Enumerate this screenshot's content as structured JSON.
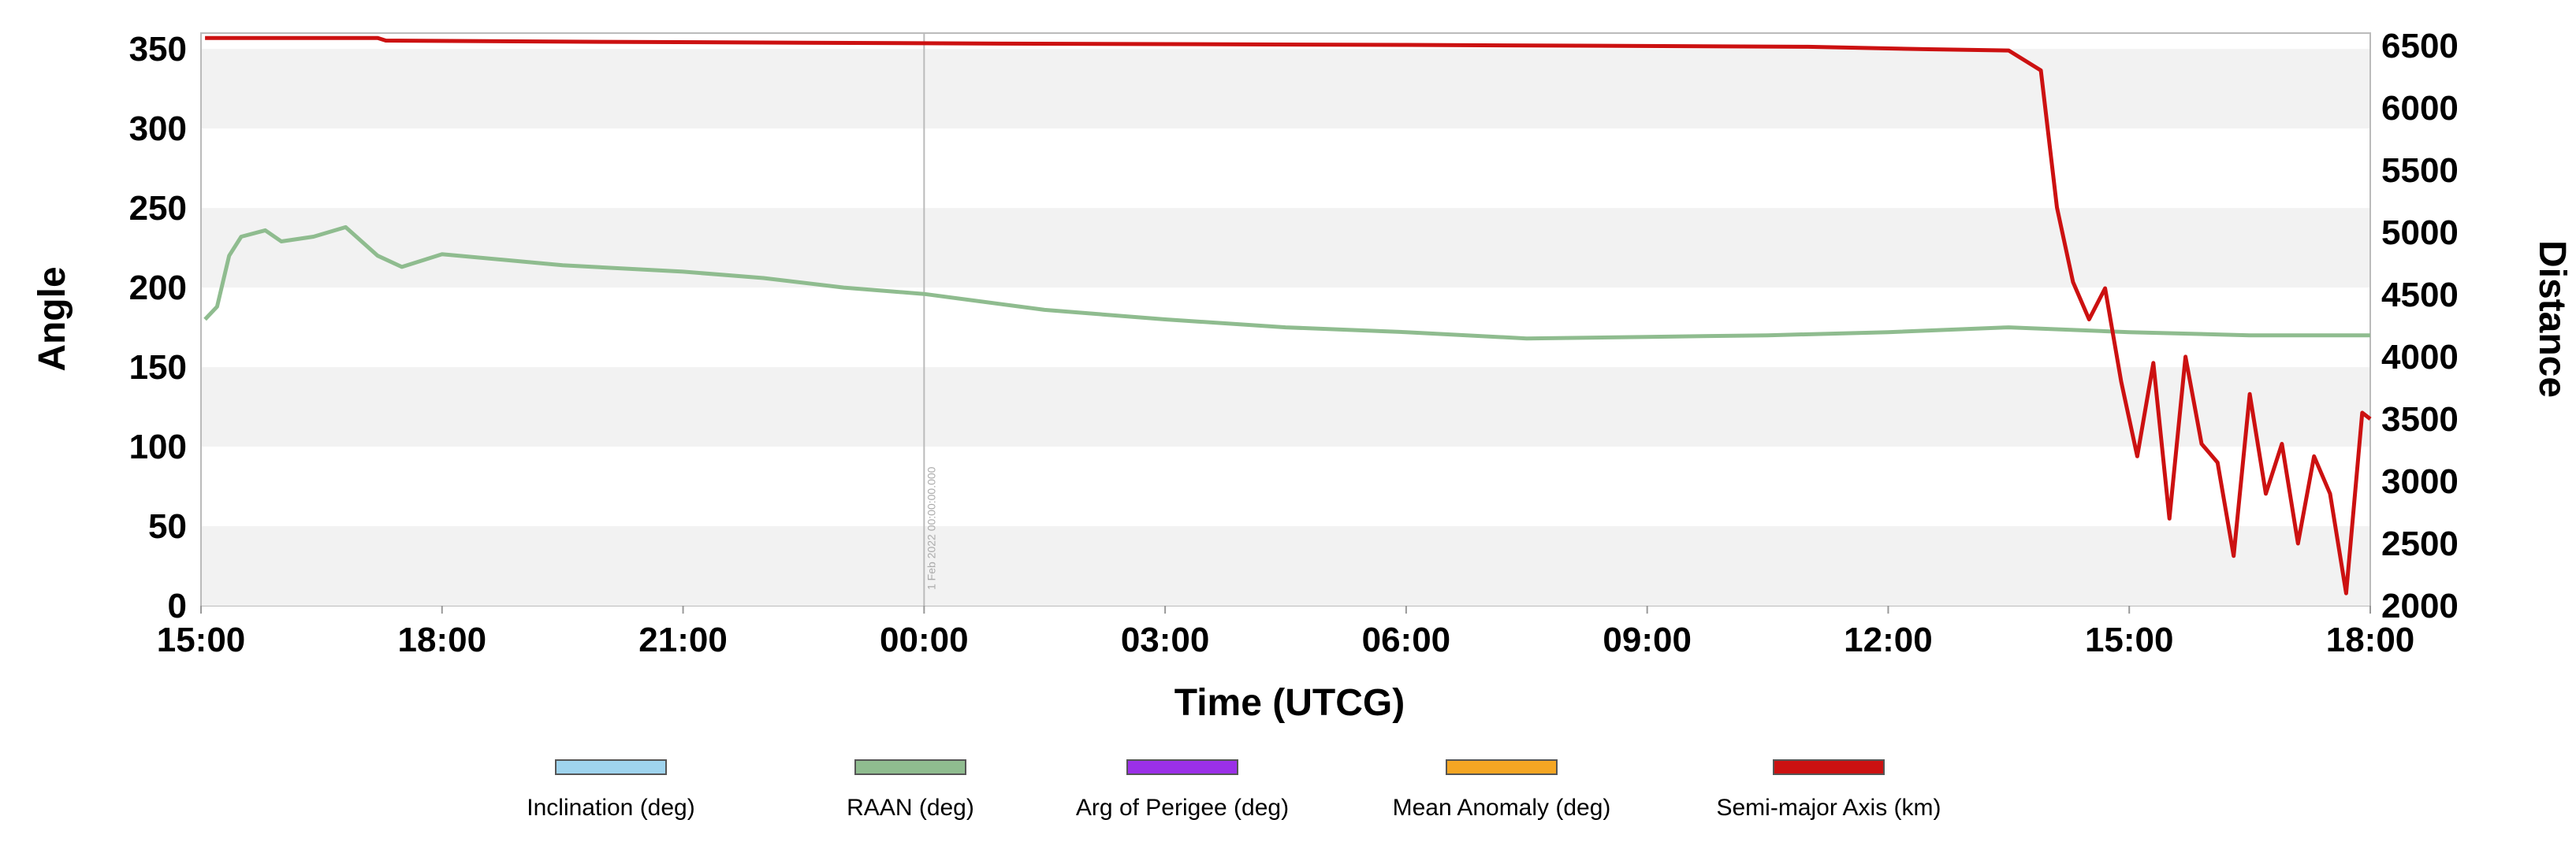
{
  "chart_data": {
    "type": "line",
    "xlabel": "Time (UTCG)",
    "ylabel_left": "Angle",
    "ylabel_right": "Distance",
    "x_unit": "hours since 15:00",
    "xlim": [
      0,
      27
    ],
    "x_ticks": [
      0,
      3,
      6,
      9,
      12,
      15,
      18,
      21,
      24,
      27
    ],
    "x_tick_labels": [
      "15:00",
      "18:00",
      "21:00",
      "00:00",
      "03:00",
      "06:00",
      "09:00",
      "12:00",
      "15:00",
      "18:00"
    ],
    "ylim_left": [
      0,
      360
    ],
    "y_ticks_left": [
      0,
      50,
      100,
      150,
      200,
      250,
      300,
      350
    ],
    "y_tick_labels_left": [
      "0",
      "50",
      "100",
      "150",
      "200",
      "250",
      "300",
      "350"
    ],
    "ylim_right": [
      2000,
      6600
    ],
    "y_ticks_right": [
      2000,
      2500,
      3000,
      3500,
      4000,
      4500,
      5000,
      5500,
      6000,
      6500
    ],
    "y_tick_labels_right": [
      "2000",
      "2500",
      "3000",
      "3500",
      "4000",
      "4500",
      "5000",
      "5500",
      "6000",
      "6500"
    ],
    "midnight_marker": {
      "x": 9,
      "label": "1 Feb 2022 00:00:00.000"
    },
    "legend": [
      {
        "name": "Inclination (deg)",
        "color": "#9fd4ee"
      },
      {
        "name": "RAAN (deg)",
        "color": "#8fbc8f"
      },
      {
        "name": "Arg of Perigee (deg)",
        "color": "#9b30e8"
      },
      {
        "name": "Mean Anomaly (deg)",
        "color": "#f5a623"
      },
      {
        "name": "Semi-major Axis (km)",
        "color": "#cc1111"
      }
    ],
    "series": [
      {
        "name": "RAAN (deg)",
        "axis": "left",
        "color": "#8fbc8f",
        "x": [
          0.05,
          0.2,
          0.35,
          0.5,
          0.8,
          1.0,
          1.4,
          1.8,
          2.2,
          2.5,
          3.0,
          4.5,
          6.0,
          7.0,
          8.0,
          9.0,
          10.5,
          12.0,
          13.5,
          15.0,
          16.5,
          18.0,
          19.5,
          21.0,
          22.5,
          24.0,
          25.5,
          27.0
        ],
        "values": [
          180,
          188,
          220,
          232,
          236,
          229,
          232,
          238,
          220,
          213,
          221,
          214,
          210,
          206,
          200,
          196,
          186,
          180,
          175,
          172,
          168,
          169,
          170,
          172,
          175,
          172,
          170,
          170
        ]
      },
      {
        "name": "Semi-major Axis (km)",
        "axis": "right",
        "color": "#cc1111",
        "x": [
          0.05,
          2.2,
          2.3,
          5.0,
          10.0,
          15.0,
          20.0,
          21.5,
          22.5,
          22.9,
          23.1,
          23.3,
          23.5,
          23.7,
          23.9,
          24.1,
          24.3,
          24.5,
          24.7,
          24.9,
          25.1,
          25.3,
          25.5,
          25.7,
          25.9,
          26.1,
          26.3,
          26.5,
          26.7,
          26.9,
          27.0
        ],
        "values": [
          6560,
          6560,
          6540,
          6530,
          6515,
          6505,
          6490,
          6470,
          6460,
          6300,
          5200,
          4600,
          4300,
          4550,
          3800,
          3200,
          3950,
          2700,
          4000,
          3300,
          3150,
          2400,
          3700,
          2900,
          3300,
          2500,
          3200,
          2900,
          2100,
          3550,
          3500
        ]
      }
    ]
  }
}
